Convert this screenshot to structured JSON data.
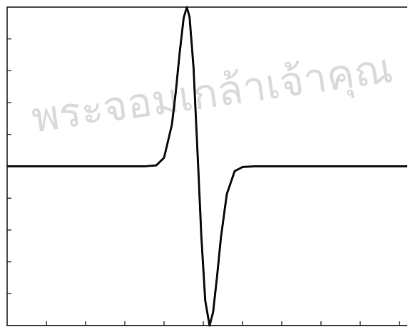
{
  "watermark": "พระจอมเกล้าเจ้าคุณ",
  "chart_data": {
    "type": "line",
    "x": [
      0,
      3.5,
      3.8,
      4.0,
      4.2,
      4.3,
      4.4,
      4.5,
      4.58,
      4.65,
      4.75,
      4.87,
      4.95,
      5.05,
      5.16,
      5.25,
      5.35,
      5.45,
      5.6,
      5.8,
      6.0,
      6.3,
      10.2
    ],
    "series": [
      {
        "color": "#111111",
        "values": [
          0,
          0,
          0.03,
          0.27,
          1.31,
          2.35,
          3.59,
          4.66,
          5,
          4.69,
          3.13,
          0,
          -2.19,
          -4.22,
          -5,
          -4.58,
          -3.47,
          -2.23,
          -0.87,
          -0.15,
          -0.02,
          0,
          0
        ]
      }
    ],
    "xlim": [
      0,
      10.2
    ],
    "xticks": [
      1,
      2,
      3,
      4,
      5,
      6,
      7,
      8,
      9,
      10
    ],
    "ylim": [
      -5,
      5
    ],
    "yticks": [
      -4,
      -3,
      -2,
      -1,
      0,
      1,
      2,
      3,
      4
    ]
  }
}
